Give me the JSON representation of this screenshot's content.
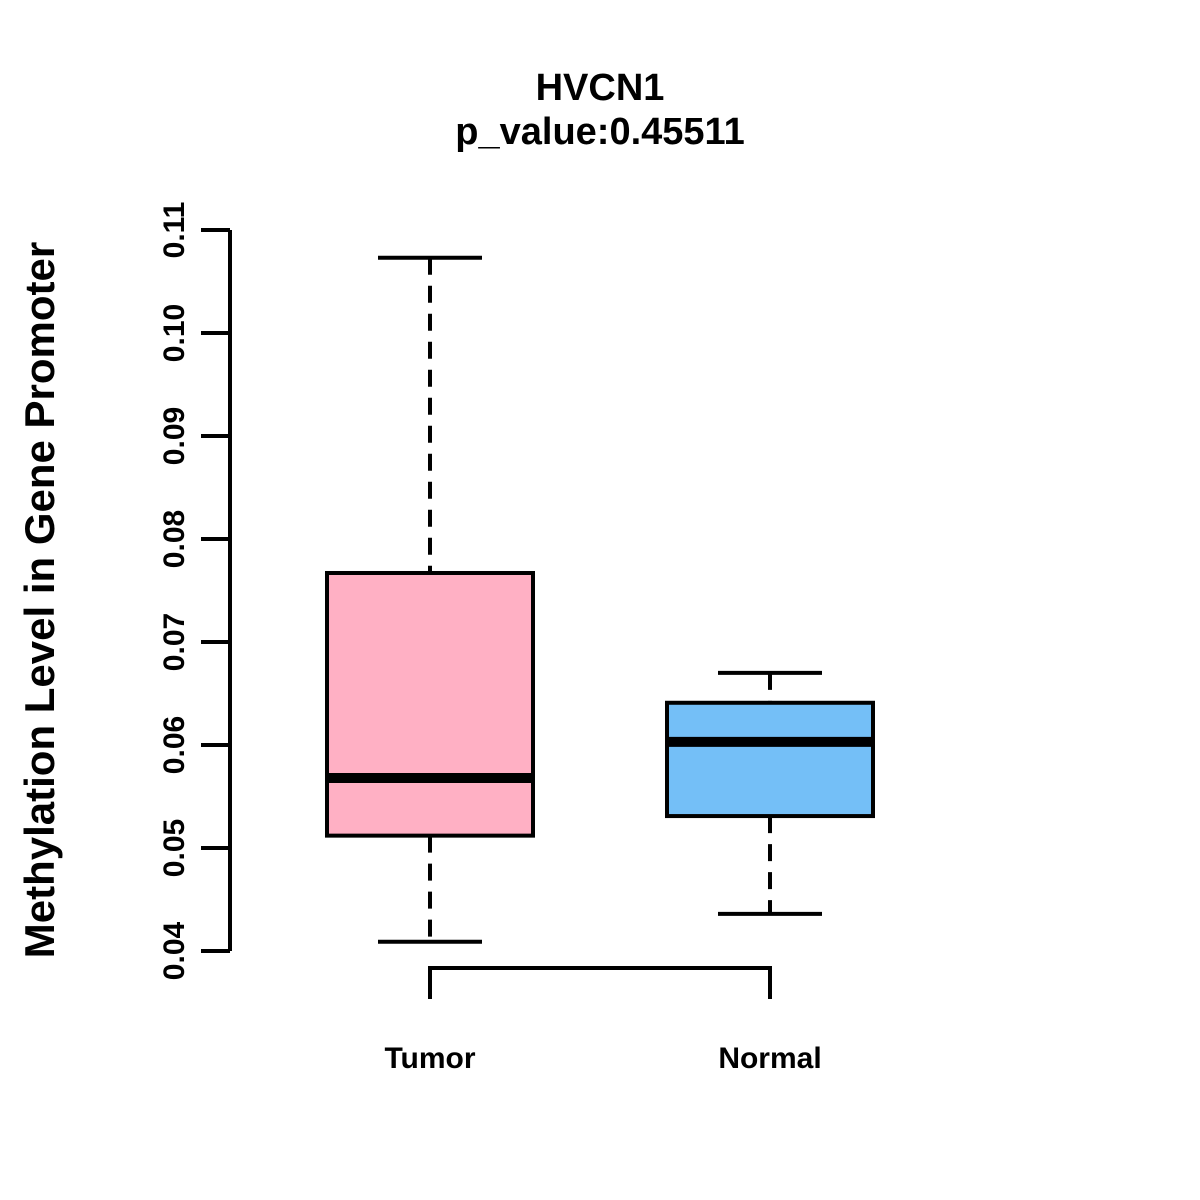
{
  "chart_data": {
    "type": "boxplot",
    "title": "HVCN1",
    "subtitle": "p_value:0.45511",
    "ylabel": "Methylation Level in Gene Promoter",
    "xlabel": "",
    "ylim": [
      0.04,
      0.11
    ],
    "y_ticks": [
      "0.04",
      "0.05",
      "0.06",
      "0.07",
      "0.08",
      "0.09",
      "0.10",
      "0.11"
    ],
    "grid": false,
    "legend": false,
    "categories": [
      "Tumor",
      "Normal"
    ],
    "groups": [
      {
        "label": "Tumor",
        "color": "#FFB0C4",
        "whisker_low": 0.0409,
        "q1": 0.0512,
        "median": 0.0568,
        "q3": 0.0767,
        "whisker_high": 0.1073
      },
      {
        "label": "Normal",
        "color": "#74BFF7",
        "whisker_low": 0.0436,
        "q1": 0.0531,
        "median": 0.0603,
        "q3": 0.0641,
        "whisker_high": 0.067
      }
    ],
    "colors": {
      "stroke": "#000000",
      "background": "#ffffff"
    }
  }
}
